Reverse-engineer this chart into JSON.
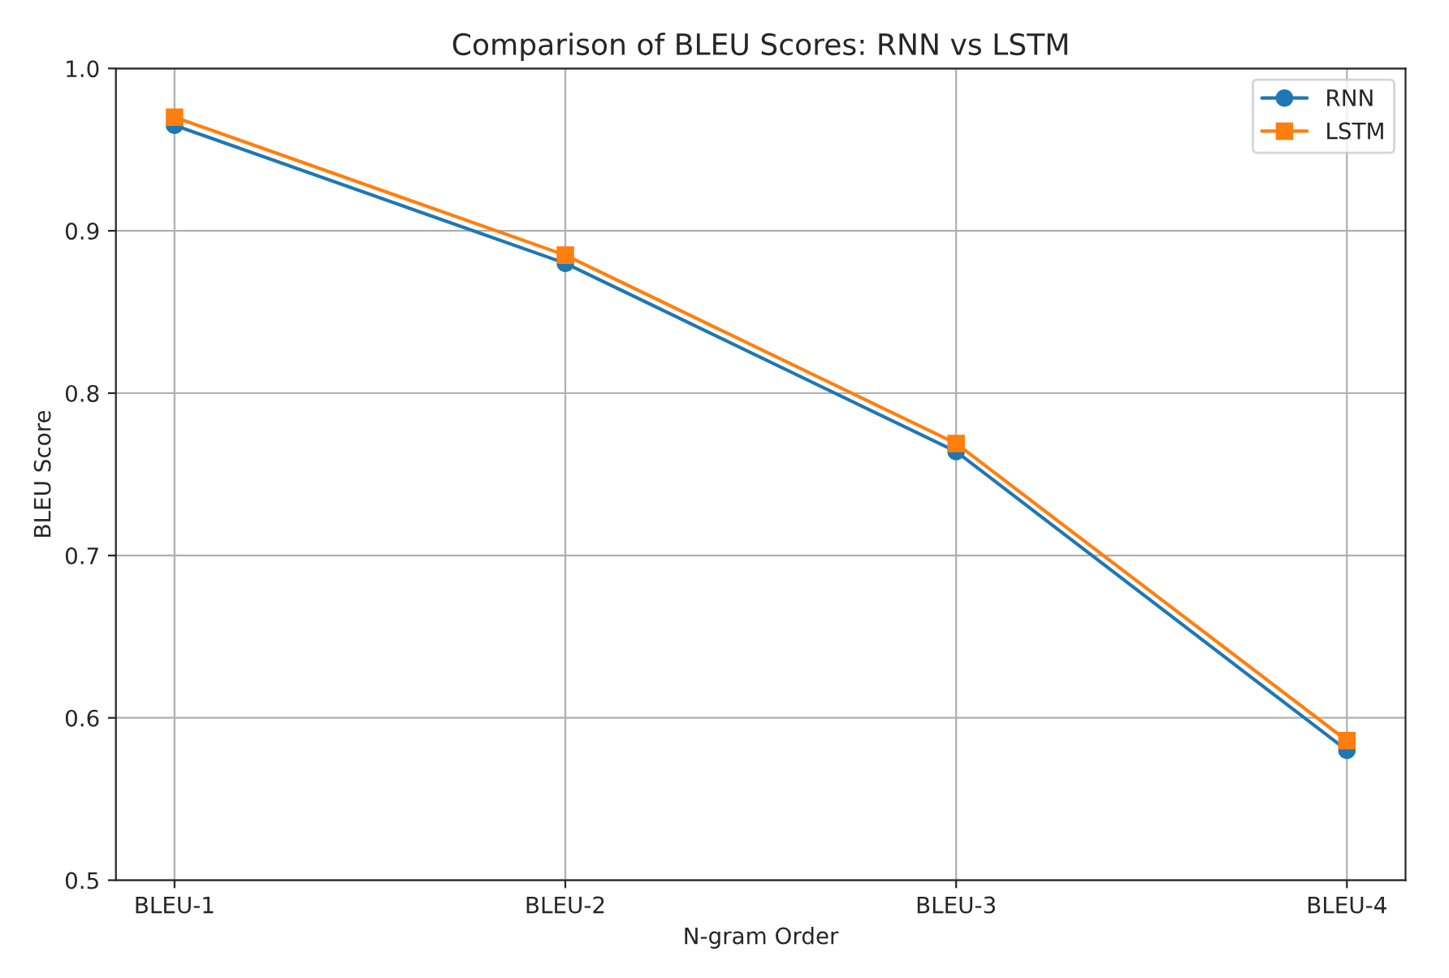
{
  "chart_data": {
    "type": "line",
    "title": "Comparison of BLEU Scores: RNN vs LSTM",
    "xlabel": "N-gram Order",
    "ylabel": "BLEU Score",
    "categories": [
      "BLEU-1",
      "BLEU-2",
      "BLEU-3",
      "BLEU-4"
    ],
    "series": [
      {
        "name": "RNN",
        "color": "#1f77b4",
        "marker": "circle",
        "values": [
          0.965,
          0.88,
          0.764,
          0.58
        ]
      },
      {
        "name": "LSTM",
        "color": "#ff7f0e",
        "marker": "square",
        "values": [
          0.97,
          0.885,
          0.769,
          0.586
        ]
      }
    ],
    "ylim": [
      0.5,
      1.0
    ],
    "yticks": [
      0.5,
      0.6,
      0.7,
      0.8,
      0.9,
      {
        "value": 1.0,
        "label": "1.0"
      }
    ],
    "grid": true,
    "legend": "top right",
    "line_style": "solid"
  }
}
